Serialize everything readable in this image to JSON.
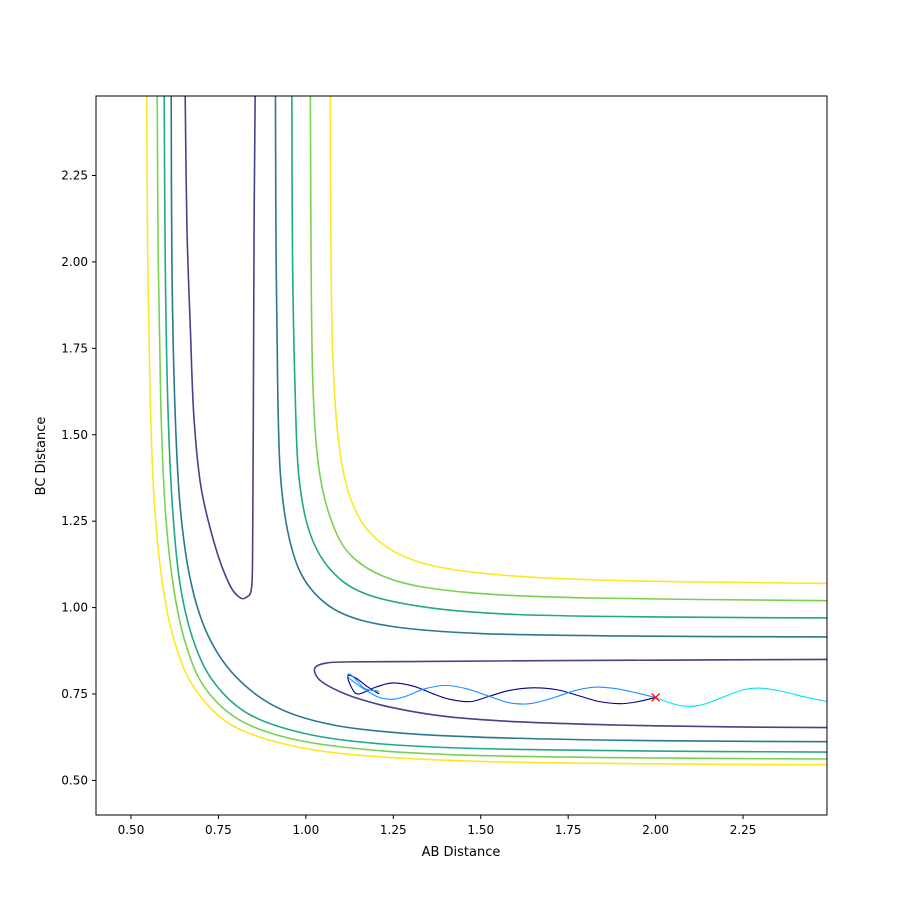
{
  "chart_data": {
    "type": "contour",
    "title": "",
    "xlabel": "AB Distance",
    "ylabel": "BC Distance",
    "xlim": [
      0.4,
      2.49
    ],
    "ylim": [
      0.4,
      2.48
    ],
    "xticks": [
      0.5,
      0.75,
      1.0,
      1.25,
      1.5,
      1.75,
      2.0,
      2.25
    ],
    "yticks": [
      0.5,
      0.75,
      1.0,
      1.25,
      1.5,
      1.75,
      2.0,
      2.25
    ],
    "xtick_labels": [
      "0.50",
      "0.75",
      "1.00",
      "1.25",
      "1.50",
      "1.75",
      "2.00",
      "2.25"
    ],
    "ytick_labels": [
      "0.50",
      "0.75",
      "1.00",
      "1.25",
      "1.50",
      "1.75",
      "2.00",
      "2.25"
    ],
    "grid": false,
    "legend": "none",
    "contour_colors": [
      "#414487",
      "#2a788e",
      "#22a884",
      "#7ad151",
      "#fde725"
    ],
    "contours": [
      {
        "color": "#414487",
        "segments": [
          [
            [
              0.655,
              2.48
            ],
            [
              0.66,
              2.1
            ],
            [
              0.67,
              1.8
            ],
            [
              0.68,
              1.55
            ],
            [
              0.7,
              1.35
            ],
            [
              0.74,
              1.18
            ],
            [
              0.78,
              1.07
            ],
            [
              0.81,
              1.03
            ],
            [
              0.83,
              1.03
            ],
            [
              0.845,
              1.06
            ],
            [
              0.848,
              1.2
            ],
            [
              0.85,
              1.6
            ],
            [
              0.852,
              2.1
            ],
            [
              0.855,
              2.48
            ]
          ],
          [
            [
              2.49,
              0.85
            ],
            [
              2.0,
              0.848
            ],
            [
              1.6,
              0.846
            ],
            [
              1.3,
              0.844
            ],
            [
              1.12,
              0.843
            ],
            [
              1.06,
              0.84
            ],
            [
              1.03,
              0.83
            ],
            [
              1.025,
              0.815
            ],
            [
              1.04,
              0.79
            ],
            [
              1.08,
              0.765
            ],
            [
              1.14,
              0.74
            ],
            [
              1.25,
              0.71
            ],
            [
              1.4,
              0.685
            ],
            [
              1.6,
              0.67
            ],
            [
              1.9,
              0.66
            ],
            [
              2.2,
              0.655
            ],
            [
              2.49,
              0.653
            ]
          ]
        ]
      },
      {
        "color": "#2a788e",
        "segments": [
          [
            [
              0.615,
              2.48
            ],
            [
              0.617,
              2.0
            ],
            [
              0.625,
              1.6
            ],
            [
              0.64,
              1.3
            ],
            [
              0.67,
              1.08
            ],
            [
              0.72,
              0.92
            ],
            [
              0.8,
              0.8
            ],
            [
              0.92,
              0.71
            ],
            [
              1.08,
              0.66
            ],
            [
              1.3,
              0.635
            ],
            [
              1.6,
              0.622
            ],
            [
              2.0,
              0.615
            ],
            [
              2.49,
              0.612
            ]
          ],
          [
            [
              0.913,
              2.48
            ],
            [
              0.915,
              2.0
            ],
            [
              0.92,
              1.6
            ],
            [
              0.93,
              1.35
            ],
            [
              0.96,
              1.17
            ],
            [
              1.01,
              1.06
            ],
            [
              1.1,
              0.985
            ],
            [
              1.25,
              0.945
            ],
            [
              1.5,
              0.925
            ],
            [
              1.9,
              0.918
            ],
            [
              2.49,
              0.915
            ]
          ]
        ]
      },
      {
        "color": "#22a884",
        "segments": [
          [
            [
              0.595,
              2.48
            ],
            [
              0.598,
              2.0
            ],
            [
              0.605,
              1.6
            ],
            [
              0.618,
              1.3
            ],
            [
              0.64,
              1.07
            ],
            [
              0.68,
              0.9
            ],
            [
              0.74,
              0.78
            ],
            [
              0.84,
              0.69
            ],
            [
              1.0,
              0.635
            ],
            [
              1.2,
              0.607
            ],
            [
              1.5,
              0.592
            ],
            [
              2.0,
              0.585
            ],
            [
              2.49,
              0.582
            ]
          ],
          [
            [
              0.96,
              2.48
            ],
            [
              0.962,
              2.0
            ],
            [
              0.97,
              1.6
            ],
            [
              0.98,
              1.38
            ],
            [
              1.01,
              1.22
            ],
            [
              1.07,
              1.11
            ],
            [
              1.17,
              1.04
            ],
            [
              1.35,
              1.0
            ],
            [
              1.6,
              0.98
            ],
            [
              2.0,
              0.973
            ],
            [
              2.49,
              0.97
            ]
          ]
        ]
      },
      {
        "color": "#7ad151",
        "segments": [
          [
            [
              0.575,
              2.48
            ],
            [
              0.578,
              2.0
            ],
            [
              0.585,
              1.6
            ],
            [
              0.597,
              1.3
            ],
            [
              0.62,
              1.07
            ],
            [
              0.655,
              0.9
            ],
            [
              0.71,
              0.77
            ],
            [
              0.81,
              0.675
            ],
            [
              0.97,
              0.618
            ],
            [
              1.2,
              0.587
            ],
            [
              1.5,
              0.572
            ],
            [
              2.0,
              0.565
            ],
            [
              2.49,
              0.562
            ]
          ],
          [
            [
              1.013,
              2.48
            ],
            [
              1.015,
              2.0
            ],
            [
              1.02,
              1.65
            ],
            [
              1.035,
              1.42
            ],
            [
              1.07,
              1.26
            ],
            [
              1.13,
              1.15
            ],
            [
              1.25,
              1.08
            ],
            [
              1.45,
              1.045
            ],
            [
              1.8,
              1.028
            ],
            [
              2.49,
              1.02
            ]
          ]
        ]
      },
      {
        "color": "#fde725",
        "segments": [
          [
            [
              0.545,
              2.48
            ],
            [
              0.548,
              2.0
            ],
            [
              0.555,
              1.6
            ],
            [
              0.567,
              1.3
            ],
            [
              0.59,
              1.07
            ],
            [
              0.625,
              0.9
            ],
            [
              0.68,
              0.77
            ],
            [
              0.78,
              0.665
            ],
            [
              0.94,
              0.605
            ],
            [
              1.15,
              0.573
            ],
            [
              1.5,
              0.555
            ],
            [
              2.0,
              0.548
            ],
            [
              2.49,
              0.545
            ]
          ],
          [
            [
              1.07,
              2.48
            ],
            [
              1.072,
              2.0
            ],
            [
              1.078,
              1.7
            ],
            [
              1.095,
              1.47
            ],
            [
              1.13,
              1.31
            ],
            [
              1.2,
              1.2
            ],
            [
              1.33,
              1.13
            ],
            [
              1.55,
              1.095
            ],
            [
              1.9,
              1.078
            ],
            [
              2.49,
              1.07
            ]
          ]
        ]
      }
    ],
    "trajectories": [
      {
        "color": "#00008b",
        "points": [
          [
            2.0,
            0.74
          ],
          [
            1.95,
            0.728
          ],
          [
            1.9,
            0.722
          ],
          [
            1.84,
            0.728
          ],
          [
            1.78,
            0.745
          ],
          [
            1.72,
            0.762
          ],
          [
            1.65,
            0.768
          ],
          [
            1.58,
            0.76
          ],
          [
            1.52,
            0.742
          ],
          [
            1.47,
            0.728
          ],
          [
            1.41,
            0.735
          ],
          [
            1.36,
            0.752
          ],
          [
            1.31,
            0.772
          ],
          [
            1.25,
            0.782
          ],
          [
            1.2,
            0.77
          ],
          [
            1.15,
            0.75
          ],
          [
            1.13,
            0.77
          ],
          [
            1.12,
            0.803
          ],
          [
            1.145,
            0.795
          ],
          [
            1.175,
            0.772
          ],
          [
            1.21,
            0.75
          ]
        ]
      },
      {
        "color": "#1e90ff",
        "points": [
          [
            2.0,
            0.74
          ],
          [
            1.95,
            0.752
          ],
          [
            1.89,
            0.765
          ],
          [
            1.83,
            0.77
          ],
          [
            1.77,
            0.76
          ],
          [
            1.71,
            0.74
          ],
          [
            1.64,
            0.722
          ],
          [
            1.58,
            0.725
          ],
          [
            1.52,
            0.745
          ],
          [
            1.46,
            0.765
          ],
          [
            1.4,
            0.775
          ],
          [
            1.34,
            0.765
          ],
          [
            1.29,
            0.745
          ],
          [
            1.25,
            0.735
          ],
          [
            1.21,
            0.74
          ],
          [
            1.17,
            0.762
          ],
          [
            1.14,
            0.783
          ],
          [
            1.12,
            0.8
          ],
          [
            1.125,
            0.808
          ],
          [
            1.145,
            0.79
          ],
          [
            1.17,
            0.765
          ],
          [
            1.21,
            0.758
          ]
        ]
      },
      {
        "color": "#00e5ee",
        "points": [
          [
            2.0,
            0.74
          ],
          [
            2.04,
            0.725
          ],
          [
            2.08,
            0.715
          ],
          [
            2.13,
            0.718
          ],
          [
            2.19,
            0.74
          ],
          [
            2.25,
            0.762
          ],
          [
            2.3,
            0.767
          ],
          [
            2.36,
            0.758
          ],
          [
            2.42,
            0.743
          ],
          [
            2.49,
            0.728
          ]
        ]
      }
    ],
    "marker": {
      "x": 2.0,
      "y": 0.74,
      "symbol": "x",
      "color": "#ff0000"
    }
  }
}
